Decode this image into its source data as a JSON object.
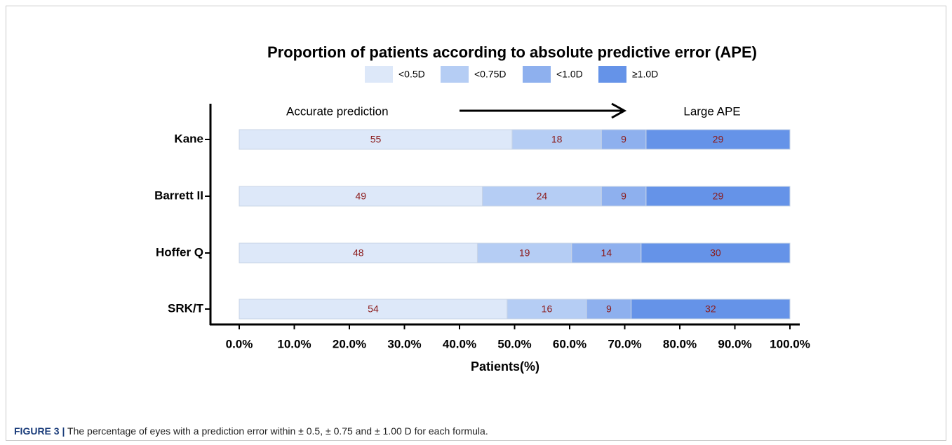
{
  "chart_data": {
    "type": "bar",
    "orientation": "horizontal",
    "stacking": "percent",
    "title": "Proportion of patients according to absolute predictive error (APE)",
    "categories": [
      "Kane",
      "Barrett II",
      "Hoffer Q",
      "SRK/T"
    ],
    "series": [
      {
        "name": "<0.5D",
        "color": "#dde8f9",
        "values": [
          55,
          49,
          48,
          54
        ]
      },
      {
        "name": "<0.75D",
        "color": "#b5cdf4",
        "values": [
          18,
          24,
          19,
          16
        ]
      },
      {
        "name": "<1.0D",
        "color": "#8eb0ee",
        "values": [
          9,
          9,
          14,
          9
        ]
      },
      {
        "name": "≥1.0D",
        "color": "#6593e8",
        "values": [
          29,
          29,
          30,
          32
        ]
      }
    ],
    "xlim": [
      0,
      100
    ],
    "xticks": [
      {
        "value": 0,
        "label": "0.0%"
      },
      {
        "value": 10,
        "label": "10.0%"
      },
      {
        "value": 20,
        "label": "20.0%"
      },
      {
        "value": 30,
        "label": "30.0%"
      },
      {
        "value": 40,
        "label": "40.0%"
      },
      {
        "value": 50,
        "label": "50.0%"
      },
      {
        "value": 60,
        "label": "60.0%"
      },
      {
        "value": 70,
        "label": "70.0%"
      },
      {
        "value": 80,
        "label": "80.0%"
      },
      {
        "value": 90,
        "label": "90.0%"
      },
      {
        "value": 100,
        "label": "100.0%"
      }
    ],
    "xlabel": "Patients(%)",
    "annotations": [
      "Accurate prediction",
      "Large APE"
    ],
    "label_color": "#8b1a1a"
  },
  "caption": {
    "label": "FIGURE 3 |",
    "text": "The percentage of eyes with a prediction error within ± 0.5, ± 0.75 and ± 1.00 D for each formula."
  }
}
